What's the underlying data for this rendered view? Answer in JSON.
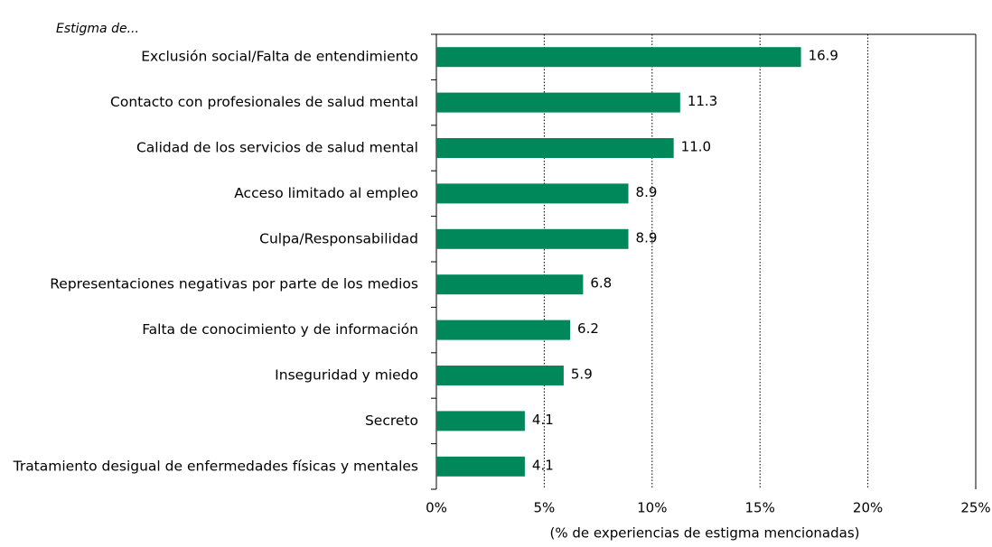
{
  "chart_data": {
    "type": "barh",
    "subtitle": "Estigma de...",
    "x_label": "(% de experiencias de estigma mencionadas)",
    "categories": [
      "Exclusión social/Falta de entendimiento",
      "Contacto con profesionales de salud mental",
      "Calidad de los servicios de salud mental",
      "Acceso limitado al empleo",
      "Culpa/Responsabilidad",
      "Representaciones negativas por parte de los medios",
      "Falta de conocimiento y de información",
      "Inseguridad y miedo",
      "Secreto",
      "Tratamiento desigual de enfermedades físicas y mentales"
    ],
    "values": [
      16.9,
      11.3,
      11.0,
      8.9,
      8.9,
      6.8,
      6.2,
      5.9,
      4.1,
      4.1
    ],
    "value_labels": [
      "16.9",
      "11.3",
      "11.0",
      "8.9",
      "8.9",
      "6.8",
      "6.2",
      "5.9",
      "4.1",
      "4.1"
    ],
    "color": "#00875a",
    "xlim": [
      0,
      25
    ],
    "xticks": [
      {
        "value": 0,
        "label": "0%"
      },
      {
        "value": 5,
        "label": "5%"
      },
      {
        "value": 10,
        "label": "10%"
      },
      {
        "value": 15,
        "label": "15%"
      },
      {
        "value": 20,
        "label": "20%"
      },
      {
        "value": 25,
        "label": "25%"
      }
    ],
    "grid": true
  }
}
